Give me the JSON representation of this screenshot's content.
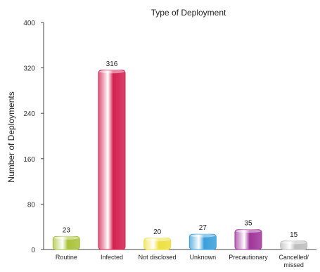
{
  "chart_data": {
    "type": "bar",
    "title": "Type of Deployment",
    "xlabel": "",
    "ylabel": "Number of Deployments",
    "ylim": [
      0,
      400
    ],
    "yticks": [
      0,
      80,
      160,
      240,
      320,
      400
    ],
    "grid": false,
    "legend": "none",
    "categories": [
      [
        "Routine"
      ],
      [
        "Infected"
      ],
      [
        "Not disclosed"
      ],
      [
        "Unknown"
      ],
      [
        "Precautionary"
      ],
      [
        "Cancelled/",
        "missed"
      ]
    ],
    "values": [
      23,
      316,
      20,
      27,
      35,
      15
    ],
    "colors": [
      "#a9c23a",
      "#d3204f",
      "#ede03e",
      "#3a9fdb",
      "#a0359a",
      "#bdbdbd"
    ]
  }
}
